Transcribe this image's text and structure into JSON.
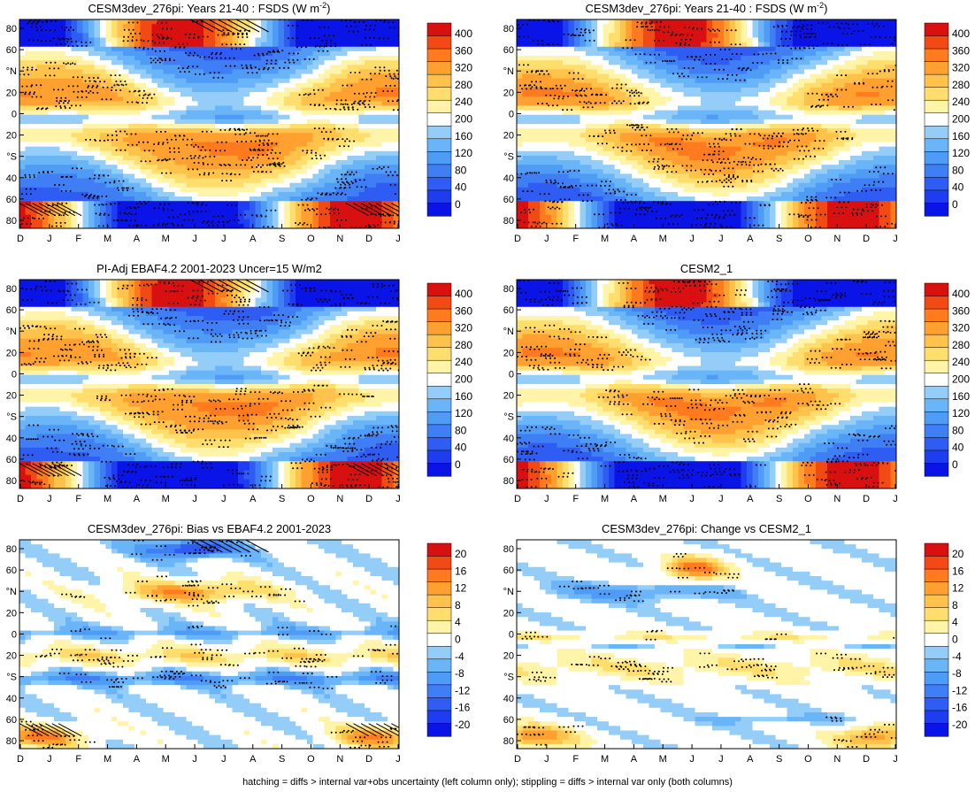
{
  "footer": "hatching = diffs > internal var+obs uncertainty (left column only); stippling = diffs > internal var only (both columns)",
  "chart_data": [
    {
      "type": "heatmap",
      "title": "CESM3dev_276pi: Years 21-40 : FSDS (W m-2)",
      "title_main": "CESM3dev_276pi: Years 21-40 : FSDS (W m",
      "title_sup": "-2",
      "title_end": ")",
      "kind": "abs",
      "hatching": true,
      "seed": 1,
      "x": [
        "D",
        "J",
        "F",
        "M",
        "A",
        "M",
        "J",
        "J",
        "A",
        "S",
        "O",
        "N",
        "D",
        "J"
      ],
      "y_ticks": [
        "80",
        "60",
        "°N",
        "20",
        "0",
        "20",
        "°S",
        "40",
        "60",
        "80"
      ],
      "colorbar": [
        "400",
        "360",
        "320",
        "280",
        "240",
        "200",
        "160",
        "120",
        "80",
        "40",
        "0"
      ]
    },
    {
      "type": "heatmap",
      "title": "CESM3dev_276pi: Years 21-40 : FSDS (W m-2)",
      "title_main": "CESM3dev_276pi: Years 21-40 : FSDS (W m",
      "title_sup": "-2",
      "title_end": ")",
      "kind": "abs",
      "hatching": false,
      "seed": 2,
      "x": [
        "D",
        "J",
        "F",
        "M",
        "A",
        "M",
        "J",
        "J",
        "A",
        "S",
        "O",
        "N",
        "D",
        "J"
      ],
      "y_ticks": [
        "80",
        "60",
        "°N",
        "20",
        "0",
        "20",
        "°S",
        "40",
        "60",
        "80"
      ],
      "colorbar": [
        "400",
        "360",
        "320",
        "280",
        "240",
        "200",
        "160",
        "120",
        "80",
        "40",
        "0"
      ]
    },
    {
      "type": "heatmap",
      "title": "PI-Adj EBAF4.2 2001-2023 Uncer=15 W/m2",
      "title_main": "PI-Adj EBAF4.2 2001-2023 Uncer=15 W/m2",
      "title_sup": "",
      "title_end": "",
      "kind": "abs",
      "hatching": true,
      "seed": 3,
      "x": [
        "D",
        "J",
        "F",
        "M",
        "A",
        "M",
        "J",
        "J",
        "A",
        "S",
        "O",
        "N",
        "D",
        "J"
      ],
      "y_ticks": [
        "80",
        "60",
        "°N",
        "20",
        "0",
        "20",
        "°S",
        "40",
        "60",
        "80"
      ],
      "colorbar": [
        "400",
        "360",
        "320",
        "280",
        "240",
        "200",
        "160",
        "120",
        "80",
        "40",
        "0"
      ]
    },
    {
      "type": "heatmap",
      "title": "CESM2_1",
      "title_main": "CESM2_1",
      "title_sup": "",
      "title_end": "",
      "kind": "abs",
      "hatching": false,
      "seed": 4,
      "x": [
        "D",
        "J",
        "F",
        "M",
        "A",
        "M",
        "J",
        "J",
        "A",
        "S",
        "O",
        "N",
        "D",
        "J"
      ],
      "y_ticks": [
        "80",
        "60",
        "°N",
        "20",
        "0",
        "20",
        "°S",
        "40",
        "60",
        "80"
      ],
      "colorbar": [
        "400",
        "360",
        "320",
        "280",
        "240",
        "200",
        "160",
        "120",
        "80",
        "40",
        "0"
      ]
    },
    {
      "type": "heatmap",
      "title": "CESM3dev_276pi: Bias vs EBAF4.2 2001-2023",
      "title_main": "CESM3dev_276pi: Bias vs EBAF4.2 2001-2023",
      "title_sup": "",
      "title_end": "",
      "kind": "bias",
      "hatching": true,
      "seed": 5,
      "x": [
        "D",
        "J",
        "F",
        "M",
        "A",
        "M",
        "J",
        "J",
        "A",
        "S",
        "O",
        "N",
        "D",
        "J"
      ],
      "y_ticks": [
        "80",
        "60",
        "°N",
        "20",
        "0",
        "20",
        "°S",
        "40",
        "60",
        "80"
      ],
      "colorbar": [
        "20",
        "16",
        "12",
        "8",
        "4",
        "0",
        "-4",
        "-8",
        "-12",
        "-16",
        "-20"
      ]
    },
    {
      "type": "heatmap",
      "title": "CESM3dev_276pi: Change vs CESM2_1",
      "title_main": "CESM3dev_276pi: Change vs CESM2_1",
      "title_sup": "",
      "title_end": "",
      "kind": "change",
      "hatching": false,
      "seed": 6,
      "x": [
        "D",
        "J",
        "F",
        "M",
        "A",
        "M",
        "J",
        "J",
        "A",
        "S",
        "O",
        "N",
        "D",
        "J"
      ],
      "y_ticks": [
        "80",
        "60",
        "°N",
        "20",
        "0",
        "20",
        "°S",
        "40",
        "60",
        "80"
      ],
      "colorbar": [
        "20",
        "16",
        "12",
        "8",
        "4",
        "0",
        "-4",
        "-8",
        "-12",
        "-16",
        "-20"
      ]
    }
  ],
  "palette": [
    "#0a14e6",
    "#1e3cf0",
    "#2f5cf2",
    "#3f7ef4",
    "#4f9cf6",
    "#6ab4f8",
    "#94cef8",
    "#ffffff",
    "#fff4a8",
    "#ffde6e",
    "#ffc24a",
    "#ffa030",
    "#ff7b1e",
    "#f24a14",
    "#d81010"
  ]
}
